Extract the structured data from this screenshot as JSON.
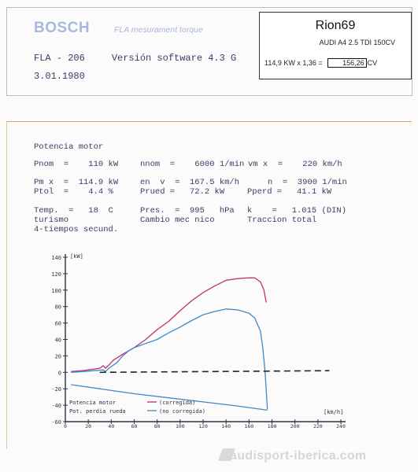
{
  "header": {
    "brand": "BOSCH",
    "subtitle": "FLA mesurament torque",
    "device": "FLA - 206",
    "software": "Versión software  4.3 G",
    "date": "3.01.1980"
  },
  "result_box": {
    "title": "Rion69",
    "model": "AUDI A4 2.5 TDI 150CV",
    "calc_prefix": "114,9 KW x 1,36 =",
    "calc_value": "156,26",
    "calc_unit": "CV"
  },
  "report": {
    "section": "Potencia motor",
    "pnom": "Pnom  =    110 kW",
    "nnom": "nnom  =    6000 1/min",
    "vmax": "vm x  =    220 km/h",
    "pmax": "Pm x  =  114.9 kW",
    "env": "en  v  =  167.5 km/h",
    "n": "n  =  3900 1/min",
    "ptol": "Ptol  =    4.4 %",
    "prued": "Prued =   72.2 kW",
    "pperd": "Pperd =   41.1 kW",
    "temp": "Temp.  =   18  C",
    "pres": "Pres.  =  995   hPa",
    "k": "k    =   1.015 (DIN)",
    "turismo": "turismo",
    "cambio": "Cambio mec nico",
    "traccion": "Traccion total",
    "tiempos": "4-tiempos secund."
  },
  "chart_data": {
    "type": "line",
    "ylabel": "[kW]",
    "xlabel": "[km/h]",
    "xlim": [
      0,
      240
    ],
    "ylim": [
      -60,
      140
    ],
    "xticks": [
      0,
      20,
      40,
      60,
      80,
      100,
      120,
      140,
      160,
      180,
      200,
      220,
      240
    ],
    "yticks": [
      -60,
      -40,
      -20,
      0,
      20,
      40,
      60,
      80,
      100,
      120,
      140
    ],
    "legend": {
      "position": "bottom-left",
      "label1": "Potencia motor",
      "label2": "Pot. perdia rueda",
      "note1": "(corregida)",
      "note2": "(no corregida)"
    },
    "series": [
      {
        "key": "potencia_motor",
        "color": "#c0306e",
        "x": [
          5,
          15,
          25,
          30,
          33,
          35,
          38,
          42,
          50,
          60,
          70,
          80,
          90,
          100,
          110,
          120,
          130,
          140,
          150,
          160,
          165,
          170,
          173,
          175
        ],
        "y": [
          1,
          2,
          4,
          5,
          8,
          5,
          9,
          15,
          22,
          30,
          40,
          52,
          62,
          75,
          87,
          97,
          105,
          112,
          114,
          115,
          114.9,
          110,
          100,
          85
        ]
      },
      {
        "key": "potencia_rueda",
        "color": "#3f89c6",
        "x": [
          5,
          15,
          25,
          33,
          35,
          38,
          45,
          50,
          55,
          60,
          70,
          80,
          90,
          100,
          110,
          120,
          130,
          140,
          150,
          160,
          165,
          170,
          172,
          174,
          176
        ],
        "y": [
          0,
          1,
          2,
          3,
          1,
          5,
          12,
          20,
          26,
          30,
          35,
          40,
          48,
          55,
          63,
          70,
          74,
          77,
          76,
          72,
          66,
          50,
          30,
          0,
          -45
        ]
      },
      {
        "key": "perdida",
        "color": "#3f89c6",
        "x": [
          5,
          30,
          60,
          90,
          120,
          150,
          176
        ],
        "y": [
          -15,
          -20,
          -26,
          -31,
          -36,
          -41,
          -46
        ]
      },
      {
        "key": "referencia",
        "color": "#222222",
        "x": [
          30,
          230
        ],
        "y": [
          0,
          2
        ]
      }
    ]
  }
}
